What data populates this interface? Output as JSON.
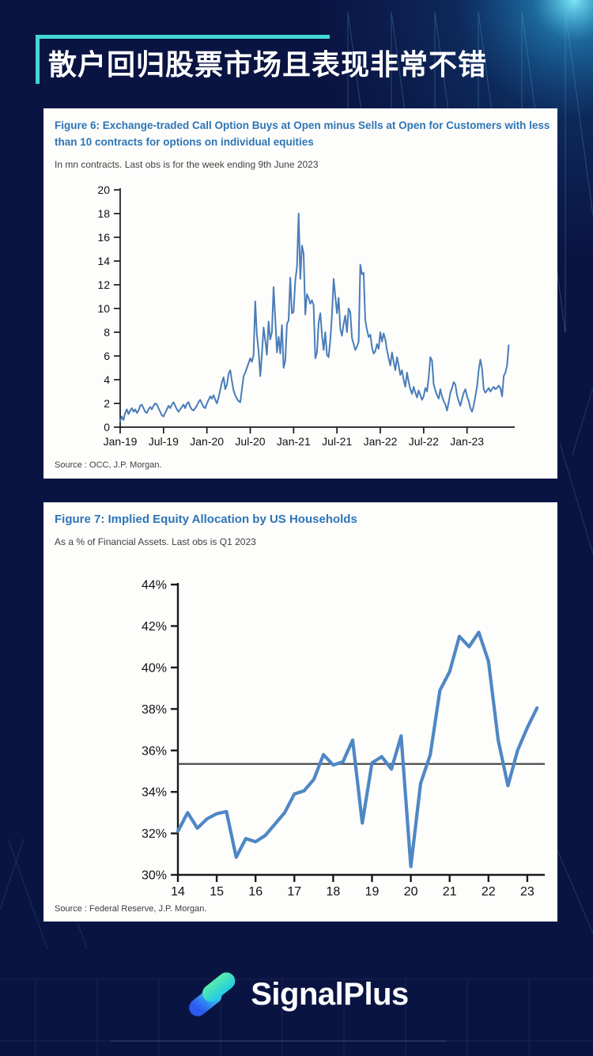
{
  "page": {
    "title": "散户回归股票市场且表现非常不错",
    "accent_color": "#43d8d2",
    "background_color": "#0a1442"
  },
  "brand": {
    "name": "SignalPlus"
  },
  "figure6": {
    "title_line1": "Figure 6: Exchange-traded Call Option Buys at Open minus Sells at Open for Customers with less",
    "title_line2": "than 10 contracts for options on individual equities",
    "subtitle": "In mn contracts. Last obs is for the week ending 9th June 2023",
    "source": "Source : OCC, J.P. Morgan."
  },
  "figure7": {
    "title": "Figure 7: Implied Equity Allocation by US Households",
    "subtitle": "As a % of Financial Assets. Last obs is Q1 2023",
    "source": "Source : Federal Reserve, J.P. Morgan."
  },
  "chart_data": [
    {
      "id": "fig6",
      "type": "line",
      "title": "Exchange-traded Call Option Buys at Open minus Sells at Open for Customers with less than 10 contracts for options on individual equities",
      "ylabel": "mn contracts",
      "xlabel": "",
      "grid": false,
      "legend": null,
      "line_color": "#4a7db9",
      "xlim": [
        2019.0,
        2023.55
      ],
      "ylim": [
        0,
        20
      ],
      "x_start": 2019.0,
      "x_step": 0.0192307692,
      "xtick_values": [
        2019.0,
        2019.5,
        2020.0,
        2020.5,
        2021.0,
        2021.5,
        2022.0,
        2022.5,
        2023.0
      ],
      "xtick_labels": [
        "Jan-19",
        "Jul-19",
        "Jan-20",
        "Jul-20",
        "Jan-21",
        "Jul-21",
        "Jan-22",
        "Jul-22",
        "Jan-23"
      ],
      "ytick_values": [
        0,
        2,
        4,
        6,
        8,
        10,
        12,
        14,
        16,
        18,
        20
      ],
      "ytick_labels": [
        "0",
        "2",
        "4",
        "6",
        "8",
        "10",
        "12",
        "14",
        "16",
        "18",
        "20"
      ],
      "values": [
        0.5,
        0.9,
        0.6,
        1.2,
        1.5,
        1.1,
        1.4,
        1.6,
        1.3,
        1.5,
        1.2,
        1.4,
        1.8,
        1.9,
        1.6,
        1.3,
        1.2,
        1.5,
        1.7,
        1.5,
        1.8,
        2.0,
        1.9,
        1.6,
        1.3,
        1.0,
        0.9,
        1.2,
        1.5,
        1.8,
        1.6,
        1.9,
        2.1,
        1.8,
        1.5,
        1.3,
        1.5,
        1.7,
        1.9,
        1.6,
        2.0,
        2.1,
        1.7,
        1.5,
        1.4,
        1.6,
        1.8,
        2.1,
        2.3,
        2.0,
        1.7,
        1.6,
        2.0,
        2.3,
        2.6,
        2.4,
        2.7,
        2.3,
        2.0,
        2.5,
        3.1,
        3.8,
        4.2,
        3.2,
        3.6,
        4.5,
        4.8,
        3.9,
        3.1,
        2.7,
        2.4,
        2.2,
        2.1,
        3.2,
        4.3,
        4.6,
        5.0,
        5.4,
        5.8,
        5.5,
        6.1,
        10.6,
        7.8,
        6.4,
        4.3,
        6.2,
        8.4,
        7.3,
        6.1,
        8.9,
        7.4,
        8.0,
        11.8,
        9.2,
        6.3,
        7.6,
        6.2,
        8.6,
        5.0,
        5.6,
        8.7,
        9.0,
        12.6,
        9.6,
        9.7,
        12.3,
        13.5,
        18.0,
        12.5,
        15.3,
        14.6,
        9.5,
        11.2,
        10.9,
        10.4,
        10.7,
        10.3,
        5.8,
        6.3,
        8.8,
        9.6,
        7.8,
        6.5,
        8.0,
        6.1,
        5.9,
        7.3,
        9.4,
        12.5,
        11.0,
        9.6,
        10.9,
        8.3,
        7.7,
        8.7,
        9.4,
        8.0,
        10.0,
        9.7,
        7.5,
        7.0,
        6.5,
        6.8,
        7.2,
        13.7,
        12.9,
        13.0,
        9.0,
        8.2,
        7.6,
        7.8,
        6.7,
        6.2,
        6.4,
        7.0,
        6.6,
        8.0,
        7.2,
        7.9,
        7.4,
        6.5,
        5.8,
        5.2,
        6.3,
        5.5,
        4.8,
        5.9,
        5.2,
        4.4,
        4.8,
        4.0,
        3.4,
        4.6,
        3.8,
        3.2,
        2.8,
        3.4,
        2.9,
        2.5,
        3.1,
        2.7,
        2.3,
        2.6,
        3.3,
        3.0,
        4.2,
        5.9,
        5.6,
        3.6,
        3.1,
        2.7,
        2.4,
        3.2,
        2.6,
        2.2,
        1.9,
        1.4,
        2.1,
        2.9,
        3.3,
        3.8,
        3.6,
        2.7,
        2.2,
        1.8,
        2.4,
        2.9,
        3.2,
        2.6,
        2.2,
        1.6,
        1.3,
        1.8,
        2.6,
        3.4,
        4.8,
        5.7,
        4.9,
        3.2,
        2.9,
        3.1,
        3.3,
        3.0,
        3.2,
        3.4,
        3.2,
        3.3,
        3.5,
        3.3,
        2.6,
        4.3,
        4.6,
        5.2,
        6.9
      ]
    },
    {
      "id": "fig7",
      "type": "line",
      "title": "Implied Equity Allocation by US Households",
      "ylabel": "% of Financial Assets",
      "xlabel": "",
      "grid": false,
      "legend": null,
      "line_color": "#4f87c5",
      "reference_line": {
        "value": 35.35,
        "color": "#4a4a4a"
      },
      "xlim": [
        14,
        23.45
      ],
      "ylim": [
        30,
        44
      ],
      "x_start": 14.0,
      "x_step": 0.25,
      "xtick_values": [
        14,
        15,
        16,
        17,
        18,
        19,
        20,
        21,
        22,
        23
      ],
      "xtick_labels": [
        "14",
        "15",
        "16",
        "17",
        "18",
        "19",
        "20",
        "21",
        "22",
        "23"
      ],
      "ytick_values": [
        30,
        32,
        34,
        36,
        38,
        40,
        42,
        44
      ],
      "ytick_labels": [
        "30%",
        "32%",
        "34%",
        "36%",
        "38%",
        "40%",
        "42%",
        "44%"
      ],
      "values": [
        32.1,
        33.0,
        32.25,
        32.7,
        32.95,
        33.05,
        30.85,
        31.75,
        31.6,
        31.9,
        32.45,
        33.0,
        33.9,
        34.05,
        34.6,
        35.8,
        35.3,
        35.45,
        36.5,
        32.5,
        35.4,
        35.7,
        35.1,
        36.7,
        30.4,
        34.4,
        35.8,
        38.9,
        39.8,
        41.5,
        41.0,
        41.7,
        40.3,
        36.5,
        34.3,
        36.0,
        37.1,
        38.05
      ]
    }
  ]
}
